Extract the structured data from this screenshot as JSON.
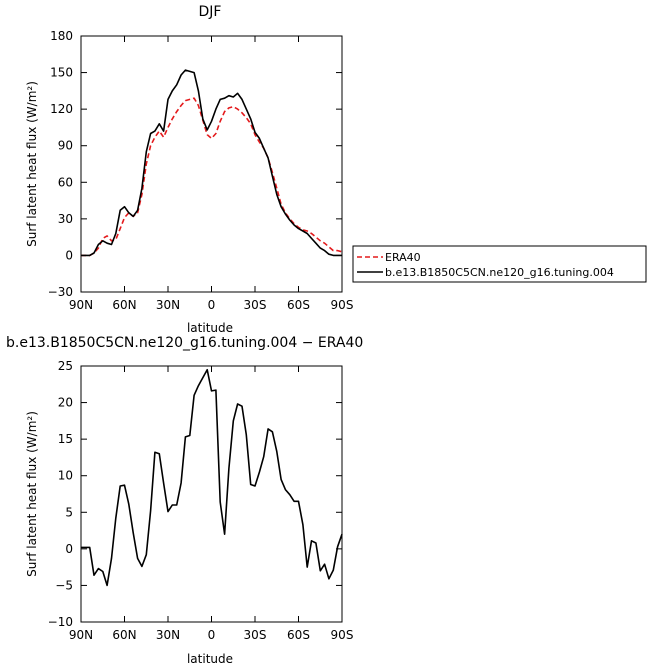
{
  "chart_data": [
    {
      "type": "line",
      "title": "DJF",
      "xlabel": "latitude",
      "ylabel": "Surf latent heat flux (W/m²)",
      "xlim": [
        90,
        -90
      ],
      "ylim": [
        -30,
        180
      ],
      "xticks": [
        {
          "value": 90,
          "label": "90N"
        },
        {
          "value": 60,
          "label": "60N"
        },
        {
          "value": 30,
          "label": "30N"
        },
        {
          "value": 0,
          "label": "0"
        },
        {
          "value": -30,
          "label": "30S"
        },
        {
          "value": -60,
          "label": "60S"
        },
        {
          "value": -90,
          "label": "90S"
        }
      ],
      "yticks": [
        -30,
        0,
        30,
        60,
        90,
        120,
        150,
        180
      ],
      "grid": false,
      "legend": "right",
      "series": [
        {
          "name": "ERA40",
          "color": "#e41a1c",
          "dash": true,
          "x": [
            90,
            84,
            81,
            78,
            75,
            72,
            69,
            66,
            63,
            60,
            57,
            54,
            51,
            48,
            45,
            42,
            39,
            36,
            33,
            30,
            27,
            24,
            21,
            18,
            15,
            12,
            9,
            6,
            3,
            0,
            -3,
            -6,
            -9,
            -12,
            -15,
            -18,
            -21,
            -24,
            -27,
            -30,
            -33,
            -36,
            -39,
            -42,
            -45,
            -48,
            -51,
            -54,
            -57,
            -60,
            -63,
            -66,
            -69,
            -72,
            -75,
            -78,
            -81,
            -84,
            -87,
            -90
          ],
          "y": [
            0,
            0,
            2,
            6,
            14,
            16,
            12,
            13,
            22,
            31,
            35,
            32,
            35,
            50,
            75,
            90,
            97,
            102,
            97,
            105,
            112,
            118,
            123,
            127,
            128,
            129,
            123,
            111,
            99,
            96,
            100,
            110,
            118,
            121,
            122,
            120,
            117,
            113,
            108,
            99,
            93,
            88,
            80,
            68,
            55,
            42,
            35,
            30,
            26,
            23,
            21,
            20,
            18,
            15,
            12,
            10,
            7,
            4,
            4,
            3
          ]
        },
        {
          "name": "b.e13.B1850C5CN.ne120_g16.tuning.004",
          "color": "#000000",
          "dash": false,
          "x": [
            90,
            84,
            81,
            78,
            75,
            72,
            69,
            66,
            63,
            60,
            57,
            54,
            51,
            48,
            45,
            42,
            39,
            36,
            33,
            30,
            27,
            24,
            21,
            18,
            15,
            12,
            9,
            6,
            3,
            0,
            -3,
            -6,
            -9,
            -12,
            -15,
            -18,
            -21,
            -24,
            -27,
            -30,
            -33,
            -36,
            -39,
            -42,
            -45,
            -48,
            -51,
            -54,
            -57,
            -60,
            -63,
            -66,
            -69,
            -72,
            -75,
            -78,
            -81,
            -84,
            -87,
            -90
          ],
          "y": [
            0,
            0,
            2,
            9,
            12,
            10,
            9,
            18,
            37,
            40,
            35,
            32,
            37,
            55,
            85,
            100,
            102,
            108,
            102,
            128,
            135,
            140,
            148,
            152,
            151,
            150,
            135,
            112,
            103,
            110,
            120,
            128,
            129,
            131,
            130,
            133,
            128,
            120,
            112,
            101,
            96,
            88,
            80,
            65,
            50,
            40,
            34,
            29,
            25,
            22,
            20,
            18,
            14,
            10,
            6,
            4,
            1,
            0,
            0,
            0
          ]
        }
      ]
    },
    {
      "type": "line",
      "title": "b.e13.B1850C5CN.ne120_g16.tuning.004 − ERA40",
      "xlabel": "latitude",
      "ylabel": "Surf latent heat flux (W/m²)",
      "xlim": [
        90,
        -90
      ],
      "ylim": [
        -10,
        25
      ],
      "xticks": [
        {
          "value": 90,
          "label": "90N"
        },
        {
          "value": 60,
          "label": "60N"
        },
        {
          "value": 30,
          "label": "30N"
        },
        {
          "value": 0,
          "label": "0"
        },
        {
          "value": -30,
          "label": "30S"
        },
        {
          "value": -60,
          "label": "60S"
        },
        {
          "value": -90,
          "label": "90S"
        }
      ],
      "yticks": [
        -10,
        -5,
        0,
        5,
        10,
        15,
        20,
        25
      ],
      "grid": false,
      "series": [
        {
          "color": "#000000",
          "dash": false,
          "x": [
            90,
            84,
            81,
            78,
            75,
            72,
            69,
            66,
            63,
            60,
            57,
            54,
            51,
            48,
            45,
            42,
            39,
            36,
            33,
            30,
            27,
            24,
            21,
            18,
            15,
            12,
            9,
            6,
            3,
            0,
            -3,
            -6,
            -9,
            -12,
            -15,
            -18,
            -21,
            -24,
            -27,
            -30,
            -33,
            -36,
            -39,
            -42,
            -45,
            -48,
            -51,
            -54,
            -57,
            -60,
            -63,
            -66,
            -69,
            -72,
            -75,
            -78,
            -81,
            -84,
            -87,
            -90
          ],
          "y": [
            0.2,
            0.2,
            -3.6,
            -2.7,
            -3.1,
            -5.0,
            -1.3,
            4.2,
            8.6,
            8.7,
            6.1,
            2.2,
            -1.3,
            -2.4,
            -0.8,
            5.2,
            13.2,
            13.0,
            9.0,
            5.1,
            6.0,
            6.0,
            9.0,
            15.3,
            15.5,
            21.0,
            22.3,
            23.4,
            24.5,
            21.6,
            21.7,
            6.4,
            2.0,
            11.0,
            17.5,
            19.8,
            19.5,
            15.6,
            8.8,
            8.6,
            10.5,
            12.6,
            16.4,
            16.0,
            13.3,
            9.5,
            8.1,
            7.4,
            6.5,
            6.5,
            3.3,
            -2.5,
            1.1,
            0.8,
            -3.0,
            -2.1,
            -4.1,
            -2.9,
            0.3,
            2.0
          ]
        }
      ]
    }
  ],
  "legend": [
    {
      "label": "ERA40",
      "color": "#e41a1c",
      "dash": true
    },
    {
      "label": "b.e13.B1850C5CN.ne120_g16.tuning.004",
      "color": "#000000",
      "dash": false
    }
  ]
}
